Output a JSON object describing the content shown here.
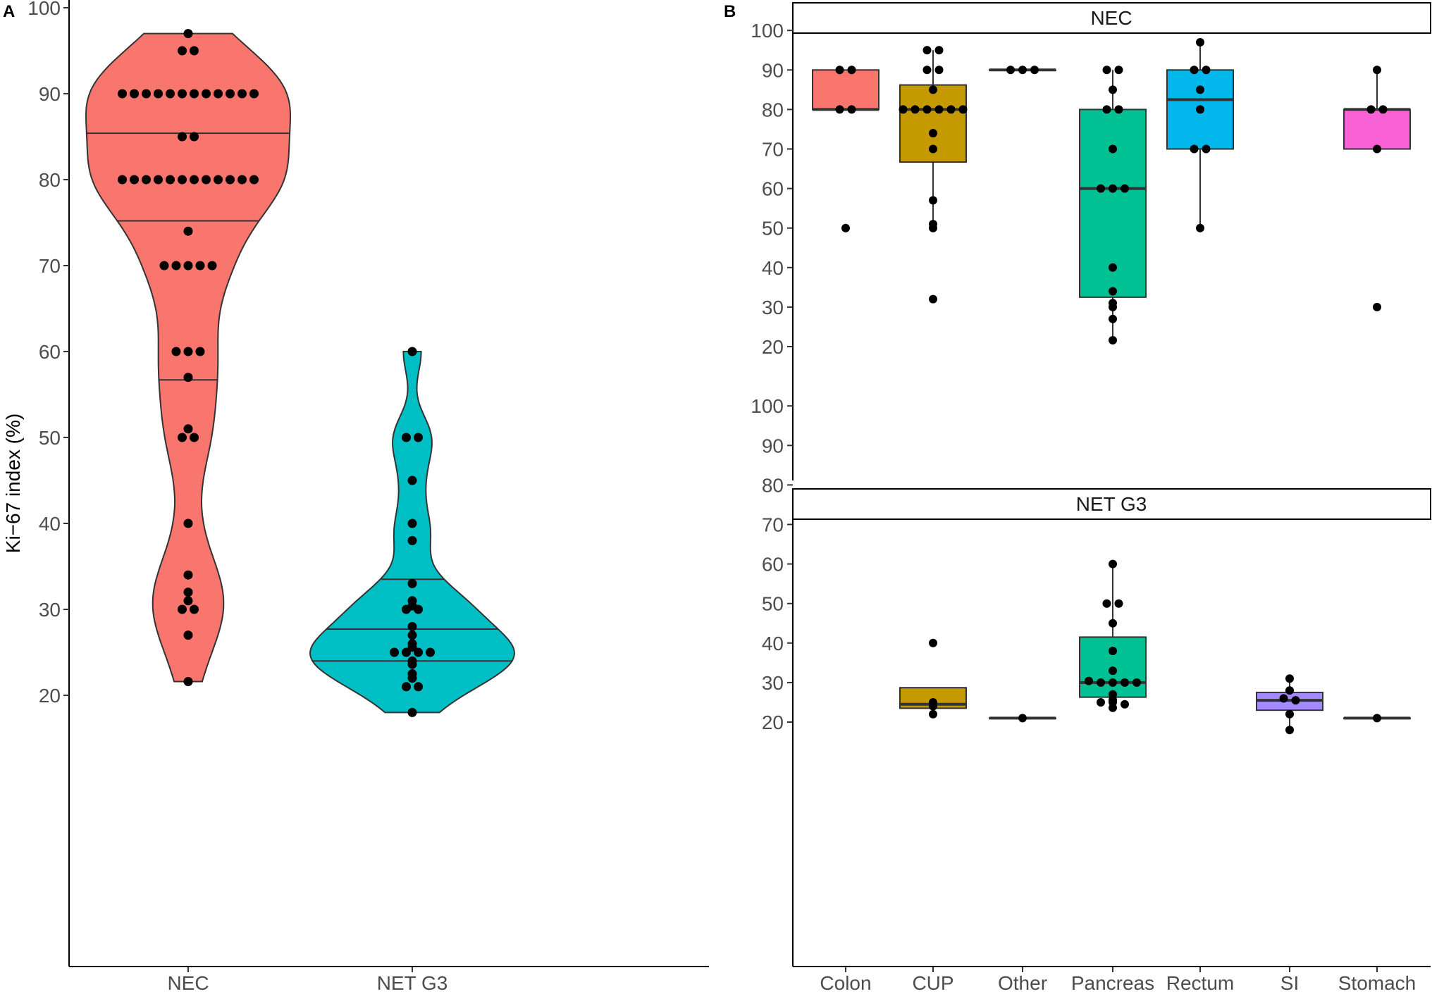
{
  "chart_data": [
    {
      "panel": "A",
      "type": "violin",
      "ylabel": "Ki−67 index (%)",
      "ylim": [
        15,
        102
      ],
      "yticks": [
        "20",
        "30",
        "40",
        "50",
        "60",
        "70",
        "80",
        "90",
        "100"
      ],
      "categories": [
        "NEC",
        "NET G3"
      ],
      "colors": [
        "#F8766D",
        "#00BFC4"
      ],
      "series": [
        {
          "category": "NEC",
          "quantiles": [
            56.7,
            75.2,
            85.4
          ],
          "range": [
            21.6,
            97
          ],
          "values": [
            97,
            95,
            95,
            90,
            90,
            90,
            90,
            90,
            90,
            90,
            90,
            90,
            90,
            90,
            90,
            85,
            85,
            80,
            80,
            80,
            80,
            80,
            80,
            80,
            80,
            80,
            80,
            80,
            80,
            74,
            70,
            70,
            70,
            70,
            70,
            60,
            60,
            60,
            57,
            51,
            50,
            50,
            40,
            34,
            32,
            31,
            30,
            30,
            27,
            21.6
          ]
        },
        {
          "category": "NET G3",
          "quantiles": [
            24,
            27.7,
            33.5
          ],
          "range": [
            18,
            60
          ],
          "values": [
            60,
            50,
            50,
            45,
            40,
            38,
            33,
            31,
            30,
            30,
            30.4,
            28,
            27,
            26,
            25.6,
            25,
            25,
            25,
            25,
            24,
            23.6,
            22.5,
            22,
            21,
            21,
            18
          ]
        }
      ]
    },
    {
      "panel": "B",
      "type": "boxplot",
      "ylim": [
        15,
        105
      ],
      "yticks": [
        "20",
        "30",
        "40",
        "50",
        "60",
        "70",
        "80",
        "90",
        "100"
      ],
      "categories": [
        "Colon",
        "CUP",
        "Other",
        "Pancreas",
        "Rectum",
        "SI",
        "Stomach"
      ],
      "colors": [
        "#F8766D",
        "#C49A00",
        "#53B400",
        "#00C094",
        "#00B6EB",
        "#A58AFF",
        "#FB61D7"
      ],
      "facets": [
        {
          "strip": "NEC",
          "groups": [
            {
              "category": "Colon",
              "box": [
                80,
                80,
                90
              ],
              "whisker": [
                80,
                90
              ],
              "points": [
                90,
                90,
                80,
                80,
                50
              ]
            },
            {
              "category": "CUP",
              "box": [
                66.7,
                80,
                86.2
              ],
              "whisker": [
                50,
                95
              ],
              "points": [
                95,
                95,
                90,
                90,
                85,
                80,
                80,
                80,
                80,
                80,
                80,
                74,
                70,
                57,
                51,
                50,
                32
              ]
            },
            {
              "category": "Other",
              "box": [
                90,
                90,
                90
              ],
              "whisker": [
                90,
                90
              ],
              "points": [
                90,
                90,
                90
              ]
            },
            {
              "category": "Pancreas",
              "box": [
                32.5,
                60,
                80
              ],
              "whisker": [
                21.6,
                90
              ],
              "points": [
                90,
                90,
                85,
                80,
                80,
                70,
                60,
                60,
                60,
                40,
                34,
                31,
                30,
                27,
                21.6
              ]
            },
            {
              "category": "Rectum",
              "box": [
                70,
                82.5,
                90
              ],
              "whisker": [
                50,
                97
              ],
              "points": [
                97,
                90,
                90,
                85,
                80,
                70,
                70,
                50
              ]
            },
            {
              "category": "Stomach",
              "box": [
                70,
                80,
                80
              ],
              "whisker": [
                70,
                90
              ],
              "points": [
                90,
                80,
                80,
                70,
                30
              ]
            }
          ]
        },
        {
          "strip": "NET G3",
          "groups": [
            {
              "category": "CUP",
              "box": [
                23.5,
                24.5,
                28.7
              ],
              "whisker": [
                22,
                28.7
              ],
              "points": [
                40,
                25,
                24,
                22
              ]
            },
            {
              "category": "Other",
              "box": [
                21,
                21,
                21
              ],
              "whisker": [
                21,
                21
              ],
              "points": [
                21
              ]
            },
            {
              "category": "Pancreas",
              "box": [
                26.3,
                30,
                41.5
              ],
              "whisker": [
                23.6,
                60
              ],
              "points": [
                60,
                50,
                50,
                45,
                38,
                33,
                30.4,
                30,
                30,
                30,
                30,
                27,
                25.6,
                25,
                25,
                24.5,
                23.6
              ]
            },
            {
              "category": "SI",
              "box": [
                23,
                25.5,
                27.5
              ],
              "whisker": [
                18,
                31
              ],
              "points": [
                31,
                28,
                26,
                25.5,
                22,
                18
              ]
            },
            {
              "category": "Stomach",
              "box": [
                21,
                21,
                21
              ],
              "whisker": [
                21,
                21
              ],
              "points": [
                21
              ]
            }
          ]
        }
      ]
    }
  ]
}
